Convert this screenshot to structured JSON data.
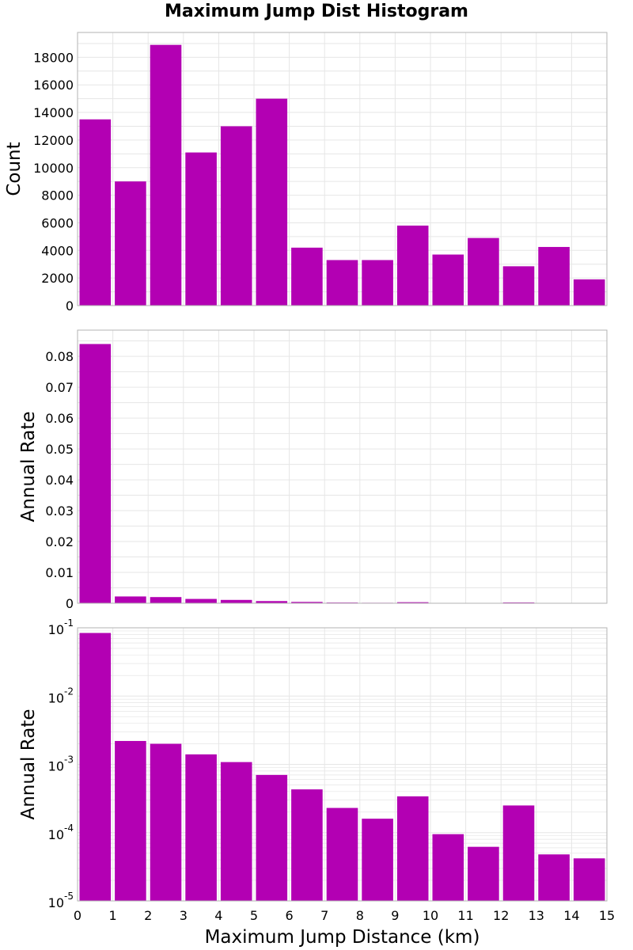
{
  "title": "Maximum Jump Dist Histogram",
  "colors": {
    "bar": "#B300B3",
    "grid": "#E6E6E6",
    "frame": "#B3B3B3",
    "background": "#FFFFFF"
  },
  "chart_data": [
    {
      "type": "bar",
      "x_bin_edges": [
        0,
        1,
        2,
        3,
        4,
        5,
        6,
        7,
        8,
        9,
        10,
        11,
        12,
        13,
        14,
        15
      ],
      "categories": [
        "0-1",
        "1-2",
        "2-3",
        "3-4",
        "4-5",
        "5-6",
        "6-7",
        "7-8",
        "8-9",
        "9-10",
        "10-11",
        "11-12",
        "12-13",
        "13-14",
        "14-15"
      ],
      "values": [
        13500,
        9000,
        18900,
        11100,
        13000,
        15000,
        4200,
        3300,
        3300,
        5800,
        3700,
        4900,
        2850,
        4250,
        1900
      ],
      "xlabel": "",
      "ylabel": "Count",
      "xlim": [
        0,
        15
      ],
      "ylim": [
        0,
        19800
      ],
      "y_scale": "linear",
      "y_ticks": [
        0,
        2000,
        4000,
        6000,
        8000,
        10000,
        12000,
        14000,
        16000,
        18000
      ],
      "y_tick_labels": [
        "0",
        "2000",
        "4000",
        "6000",
        "8000",
        "10000",
        "12000",
        "14000",
        "16000",
        "18000"
      ],
      "grid": true
    },
    {
      "type": "bar",
      "x_bin_edges": [
        0,
        1,
        2,
        3,
        4,
        5,
        6,
        7,
        8,
        9,
        10,
        11,
        12,
        13,
        14,
        15
      ],
      "categories": [
        "0-1",
        "1-2",
        "2-3",
        "3-4",
        "4-5",
        "5-6",
        "6-7",
        "7-8",
        "8-9",
        "9-10",
        "10-11",
        "11-12",
        "12-13",
        "13-14",
        "14-15"
      ],
      "values": [
        0.084,
        0.0022,
        0.002,
        0.0014,
        0.00108,
        0.0007,
        0.00043,
        0.00023,
        0.00016,
        0.00034,
        9.5e-05,
        6.2e-05,
        0.00025,
        4.8e-05,
        4.2e-05
      ],
      "xlabel": "",
      "ylabel": "Annual Rate",
      "xlim": [
        0,
        15
      ],
      "ylim": [
        0,
        0.0885
      ],
      "y_scale": "linear",
      "y_ticks": [
        0,
        0.01,
        0.02,
        0.03,
        0.04,
        0.05,
        0.06,
        0.07,
        0.08
      ],
      "y_tick_labels": [
        "0",
        "0.01",
        "0.02",
        "0.03",
        "0.04",
        "0.05",
        "0.06",
        "0.07",
        "0.08"
      ],
      "grid": true
    },
    {
      "type": "bar",
      "x_bin_edges": [
        0,
        1,
        2,
        3,
        4,
        5,
        6,
        7,
        8,
        9,
        10,
        11,
        12,
        13,
        14,
        15
      ],
      "categories": [
        "0-1",
        "1-2",
        "2-3",
        "3-4",
        "4-5",
        "5-6",
        "6-7",
        "7-8",
        "8-9",
        "9-10",
        "10-11",
        "11-12",
        "12-13",
        "13-14",
        "14-15"
      ],
      "values": [
        0.084,
        0.0022,
        0.002,
        0.0014,
        0.00108,
        0.0007,
        0.00043,
        0.00023,
        0.00016,
        0.00034,
        9.5e-05,
        6.2e-05,
        0.00025,
        4.8e-05,
        4.2e-05
      ],
      "xlabel": "Maximum Jump Distance (km)",
      "ylabel": "Annual Rate",
      "xlim": [
        0,
        15
      ],
      "ylim": [
        1e-05,
        0.1
      ],
      "y_scale": "log",
      "y_ticks": [
        1e-05,
        0.0001,
        0.001,
        0.01,
        0.1
      ],
      "y_tick_labels": [
        {
          "base": "10",
          "exp": "-5"
        },
        {
          "base": "10",
          "exp": "-4"
        },
        {
          "base": "10",
          "exp": "-3"
        },
        {
          "base": "10",
          "exp": "-2"
        },
        {
          "base": "10",
          "exp": "-1"
        }
      ],
      "x_ticks": [
        0,
        1,
        2,
        3,
        4,
        5,
        6,
        7,
        8,
        9,
        10,
        11,
        12,
        13,
        14,
        15
      ],
      "x_tick_labels": [
        "0",
        "1",
        "2",
        "3",
        "4",
        "5",
        "6",
        "7",
        "8",
        "9",
        "10",
        "11",
        "12",
        "13",
        "14",
        "15"
      ],
      "grid": true
    }
  ]
}
